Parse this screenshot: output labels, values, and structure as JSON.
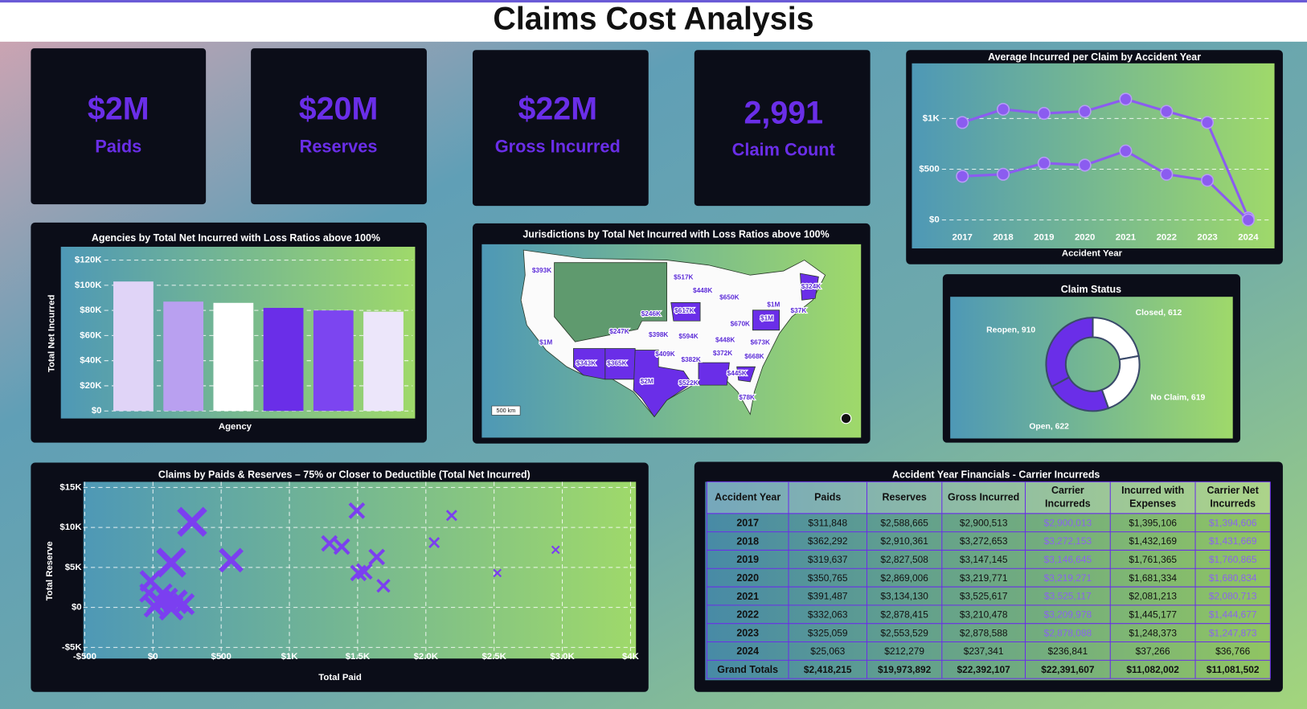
{
  "title": "Claims Cost Analysis",
  "kpis": [
    {
      "value": "$2M",
      "label": "Paids"
    },
    {
      "value": "$20M",
      "label": "Reserves"
    },
    {
      "value": "$22M",
      "label": "Gross Incurred"
    },
    {
      "value": "2,991",
      "label": "Claim Count"
    }
  ],
  "chart_data": [
    {
      "type": "line",
      "title": "Average Incurred per Claim by Accident Year",
      "x_label": "Accident Year",
      "categories": [
        "2017",
        "2018",
        "2019",
        "2020",
        "2021",
        "2022",
        "2023",
        "2024"
      ],
      "series": [
        {
          "color": "#8b5cf0",
          "values": [
            960,
            1090,
            1050,
            1070,
            1190,
            1070,
            960,
            20
          ]
        },
        {
          "color": "#8b5cf0",
          "values": [
            430,
            450,
            560,
            540,
            680,
            450,
            390,
            0
          ]
        }
      ],
      "ylim": [
        -100,
        1510
      ],
      "yticks": [
        {
          "value": 0,
          "label": "$0"
        },
        {
          "value": 500,
          "label": "$500"
        },
        {
          "value": 1000,
          "label": "$1K"
        }
      ],
      "grid": true
    },
    {
      "type": "bar",
      "title": "Agencies by Total Net Incurred with Loss Ratios above 100%",
      "x_label": "Agency",
      "y_label": "Total Net Incurred",
      "categories": [
        null,
        null,
        null,
        null,
        null,
        null
      ],
      "values": [
        103000,
        87000,
        86000,
        82000,
        80000,
        79000
      ],
      "colors": [
        "#e0d4f7",
        "#b9a0f0",
        "#ffffff",
        "#6a2ee8",
        "#7c45f0",
        "#ece6fa"
      ],
      "ylim": [
        -6000,
        128000
      ],
      "yticks": [
        {
          "value": 0,
          "label": "$0"
        },
        {
          "value": 20000,
          "label": "$20K"
        },
        {
          "value": 40000,
          "label": "$40K"
        },
        {
          "value": 60000,
          "label": "$60K"
        },
        {
          "value": 80000,
          "label": "$80K"
        },
        {
          "value": 100000,
          "label": "$100K"
        },
        {
          "value": 120000,
          "label": "$120K"
        }
      ],
      "grid": true
    },
    {
      "type": "pie",
      "title": "Claim Status",
      "values": [
        612,
        619,
        622,
        910
      ],
      "value_labels": [
        "Closed, 612",
        "No Claim, 619",
        "Open, 622",
        "Reopen, 910"
      ],
      "colors": [
        "#ffffff",
        "#ffffff",
        "#6a2ee8",
        "#6a2ee8"
      ],
      "hole": 0.58
    },
    {
      "type": "scatter",
      "title": "Claims by Paids & Reserves – 75% or Closer to Deductible (Total Net Incurred)",
      "x_label": "Total Paid",
      "y_label": "Total Reserve",
      "color": "#7b3ff0",
      "x": [
        287,
        134,
        573,
        -18,
        -30,
        43,
        104,
        165,
        226,
        12,
        134,
        73,
        1293,
        1384,
        1494,
        1640,
        1506,
        1549,
        1689,
        2061,
        2189,
        2524,
        2951
      ],
      "values": [
        10700,
        5600,
        5900,
        3300,
        1800,
        700,
        1100,
        700,
        400,
        100,
        -100,
        1800,
        8000,
        7600,
        12100,
        6300,
        4300,
        4500,
        2700,
        8100,
        11500,
        4300,
        7200
      ],
      "sizes": [
        9,
        9,
        7,
        6,
        5,
        7,
        6,
        7,
        6,
        6,
        7,
        5,
        4,
        4,
        4,
        4,
        4,
        4,
        3,
        2,
        2,
        1,
        1
      ],
      "xlim": [
        -510,
        3540
      ],
      "ylim": [
        -6400,
        15700
      ],
      "xticks": [
        {
          "value": -500,
          "label": "-$500"
        },
        {
          "value": 0,
          "label": "$0"
        },
        {
          "value": 500,
          "label": "$500"
        },
        {
          "value": 1000,
          "label": "$1K"
        },
        {
          "value": 1500,
          "label": "$1.5K"
        },
        {
          "value": 2000,
          "label": "$2.0K"
        },
        {
          "value": 2500,
          "label": "$2.5K"
        },
        {
          "value": 3000,
          "label": "$3.0K"
        },
        {
          "value": 3500,
          "label": "$4K"
        }
      ],
      "yticks": [
        {
          "value": -5000,
          "label": "-$5K"
        },
        {
          "value": 0,
          "label": "$0"
        },
        {
          "value": 5000,
          "label": "$5K"
        },
        {
          "value": 10000,
          "label": "$10K"
        },
        {
          "value": 15000,
          "label": "$15K"
        }
      ],
      "grid": true
    }
  ],
  "map": {
    "title": "Jurisdictions by Total Net Incurred with Loss Ratios above 100%",
    "scale_label": "500 km",
    "labels": [
      "$393K",
      "$517K",
      "$448K",
      "$650K",
      "$246K",
      "$617K",
      "$1M",
      "$324K",
      "$1M",
      "$37K",
      "$247K",
      "$398K",
      "$594K",
      "$670K",
      "$1M",
      "$448K",
      "$673K",
      "$409K",
      "$372K",
      "$382K",
      "$668K",
      "$343K",
      "$365K",
      "$2M",
      "$522K",
      "$445K",
      "$78K"
    ]
  },
  "table": {
    "title": "Accident Year Financials - Carrier Incurreds",
    "header": [
      "Accident Year",
      "Paids",
      "Reserves",
      "Gross Incurred",
      "Carrier Incurreds",
      "Incurred with Expenses",
      "Carrier Net Incurreds"
    ],
    "rows": [
      [
        "2017",
        "$311,848",
        "$2,588,665",
        "$2,900,513",
        "$2,900,013",
        "$1,395,106",
        "$1,394,606"
      ],
      [
        "2018",
        "$362,292",
        "$2,910,361",
        "$3,272,653",
        "$3,272,153",
        "$1,432,169",
        "$1,431,669"
      ],
      [
        "2019",
        "$319,637",
        "$2,827,508",
        "$3,147,145",
        "$3,146,645",
        "$1,761,365",
        "$1,760,865"
      ],
      [
        "2020",
        "$350,765",
        "$2,869,006",
        "$3,219,771",
        "$3,219,271",
        "$1,681,334",
        "$1,680,834"
      ],
      [
        "2021",
        "$391,487",
        "$3,134,130",
        "$3,525,617",
        "$3,525,117",
        "$2,081,213",
        "$2,080,713"
      ],
      [
        "2022",
        "$332,063",
        "$2,878,415",
        "$3,210,478",
        "$3,209,978",
        "$1,445,177",
        "$1,444,677"
      ],
      [
        "2023",
        "$325,059",
        "$2,553,529",
        "$2,878,588",
        "$2,878,088",
        "$1,248,373",
        "$1,247,873"
      ],
      [
        "2024",
        "$25,063",
        "$212,279",
        "$237,341",
        "$236,841",
        "$37,266",
        "$36,766"
      ]
    ],
    "totals": [
      "Grand Totals",
      "$2,418,215",
      "$19,973,892",
      "$22,392,107",
      "$22,391,607",
      "$11,082,002",
      "$11,081,502"
    ]
  }
}
